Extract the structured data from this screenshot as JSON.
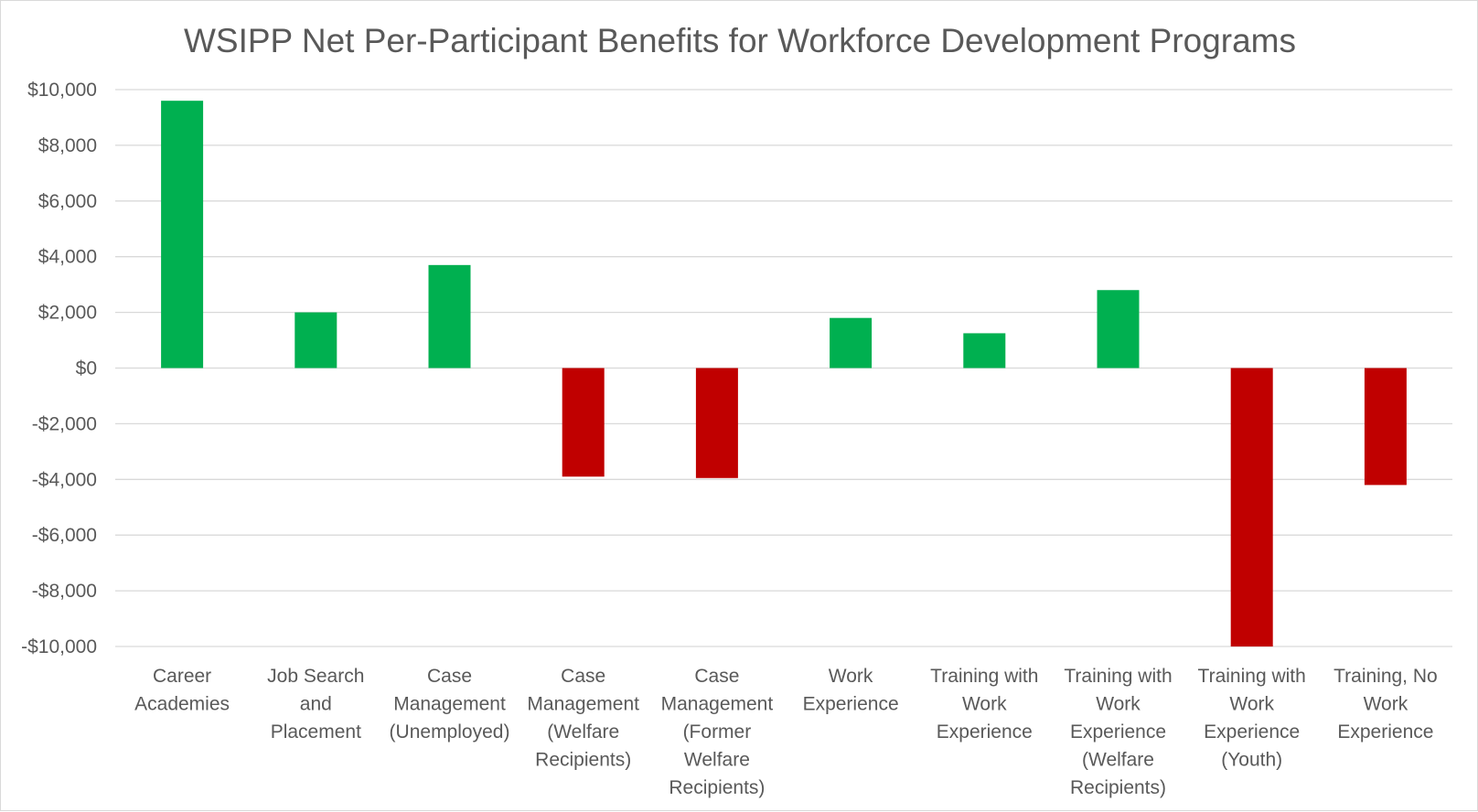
{
  "chart_data": {
    "type": "bar",
    "title": "WSIPP Net Per-Participant Benefits for Workforce Development Programs",
    "xlabel": "",
    "ylabel": "",
    "ylim": [
      -10000,
      10000
    ],
    "ytick_step": 2000,
    "ytick_labels": [
      "$10,000",
      "$8,000",
      "$6,000",
      "$4,000",
      "$2,000",
      "$0",
      "-$2,000",
      "-$4,000",
      "-$6,000",
      "-$8,000",
      "-$10,000"
    ],
    "grid": true,
    "legend": "none",
    "categories": [
      "Career Academies",
      "Job Search and Placement",
      "Case Management (Unemployed)",
      "Case Management (Welfare Recipients)",
      "Case Management (Former Welfare Recipients)",
      "Work Experience",
      "Training with Work Experience",
      "Training with Work Experience (Welfare Recipients)",
      "Training with Work Experience (Youth)",
      "Training, No Work Experience"
    ],
    "category_label_lines": [
      [
        "Career",
        "Academies"
      ],
      [
        "Job Search",
        "and",
        "Placement"
      ],
      [
        "Case",
        "Management",
        "(Unemployed)"
      ],
      [
        "Case",
        "Management",
        "(Welfare",
        "Recipients)"
      ],
      [
        "Case",
        "Management",
        "(Former",
        "Welfare",
        "Recipients)"
      ],
      [
        "Work",
        "Experience"
      ],
      [
        "Training with",
        "Work",
        "Experience"
      ],
      [
        "Training with",
        "Work",
        "Experience",
        "(Welfare",
        "Recipients)"
      ],
      [
        "Training with",
        "Work",
        "Experience",
        "(Youth)"
      ],
      [
        "Training, No",
        "Work",
        "Experience"
      ]
    ],
    "values": [
      9600,
      2000,
      3700,
      -3900,
      -3950,
      1800,
      1250,
      2800,
      -10000,
      -4200
    ],
    "colors": {
      "positive": "#00b050",
      "negative": "#c00000",
      "gridline": "#d9d9d9",
      "text": "#595959"
    }
  }
}
